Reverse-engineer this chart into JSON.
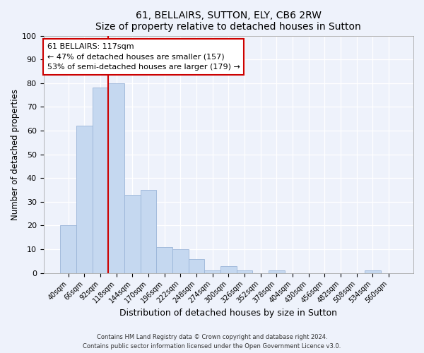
{
  "title": "61, BELLAIRS, SUTTON, ELY, CB6 2RW",
  "subtitle": "Size of property relative to detached houses in Sutton",
  "xlabel": "Distribution of detached houses by size in Sutton",
  "ylabel": "Number of detached properties",
  "bar_labels": [
    "40sqm",
    "66sqm",
    "92sqm",
    "118sqm",
    "144sqm",
    "170sqm",
    "196sqm",
    "222sqm",
    "248sqm",
    "274sqm",
    "300sqm",
    "326sqm",
    "352sqm",
    "378sqm",
    "404sqm",
    "430sqm",
    "456sqm",
    "482sqm",
    "508sqm",
    "534sqm",
    "560sqm"
  ],
  "bar_values": [
    20,
    62,
    78,
    80,
    33,
    35,
    11,
    10,
    6,
    1,
    3,
    1,
    0,
    1,
    0,
    0,
    0,
    0,
    0,
    1,
    0
  ],
  "bar_color": "#c5d8f0",
  "bar_edge_color": "#9ab5d8",
  "vline_index": 3,
  "vline_color": "#cc0000",
  "annotation_title": "61 BELLAIRS: 117sqm",
  "annotation_line1": "← 47% of detached houses are smaller (157)",
  "annotation_line2": "53% of semi-detached houses are larger (179) →",
  "annotation_box_color": "#ffffff",
  "annotation_box_edge": "#cc0000",
  "ylim": [
    0,
    100
  ],
  "yticks": [
    0,
    10,
    20,
    30,
    40,
    50,
    60,
    70,
    80,
    90,
    100
  ],
  "background_color": "#eef2fb",
  "plot_background": "#eef2fb",
  "footer1": "Contains HM Land Registry data © Crown copyright and database right 2024.",
  "footer2": "Contains public sector information licensed under the Open Government Licence v3.0."
}
